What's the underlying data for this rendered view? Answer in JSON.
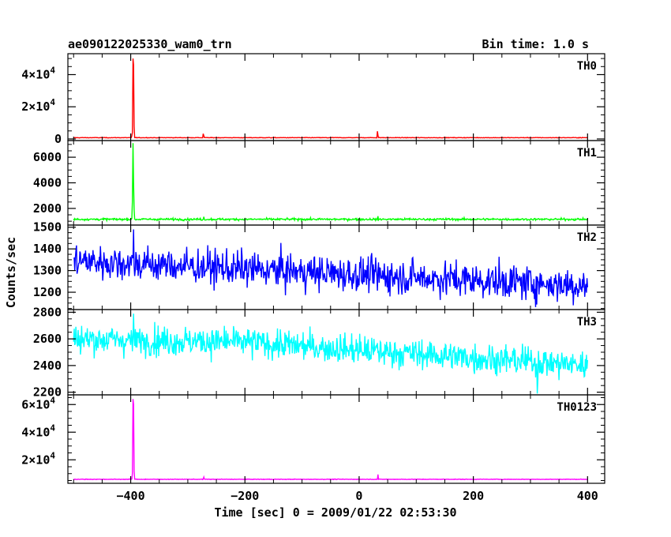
{
  "chart_data": {
    "type": "line",
    "title": "ae090122025330_wam0_trn",
    "subtitle": "Bin time: 1.0 s",
    "xlabel": "Time [sec] 0 = 2009/01/22 02:53:30",
    "ylabel": "Counts/sec",
    "xlim": [
      -510,
      430
    ],
    "x_ticks": [
      -400,
      -200,
      0,
      200,
      400
    ],
    "x_tick_labels": [
      "−400",
      "−200",
      "0",
      "200",
      "400"
    ],
    "grid": false,
    "panels": [
      {
        "name": "TH0",
        "color": "#ff0000",
        "ylim": [
          -1000,
          53000
        ],
        "ticks": [
          0,
          20000,
          40000
        ],
        "tick_labels": [
          {
            "base": "0",
            "exp": ""
          },
          {
            "base": "2×10",
            "exp": "4"
          },
          {
            "base": "4×10",
            "exp": "4"
          }
        ],
        "baseline": 800,
        "noise": 80,
        "spikes": [
          {
            "t": -398,
            "value": 2000
          },
          {
            "t": -397,
            "value": 4000
          },
          {
            "t": -396,
            "value": 50000
          },
          {
            "t": -395,
            "value": 46000
          },
          {
            "t": -394,
            "value": 8000
          },
          {
            "t": -273,
            "value": 3200
          },
          {
            "t": -272,
            "value": 2000
          },
          {
            "t": 32,
            "value": 4800
          },
          {
            "t": 33,
            "value": 2400
          }
        ]
      },
      {
        "name": "TH1",
        "color": "#00ff00",
        "ylim": [
          700,
          7300
        ],
        "ticks": [
          2000,
          4000,
          6000
        ],
        "tick_labels": [
          {
            "base": "2000",
            "exp": ""
          },
          {
            "base": "4000",
            "exp": ""
          },
          {
            "base": "6000",
            "exp": ""
          }
        ],
        "baseline": 1150,
        "noise": 40,
        "spikes": [
          {
            "t": -397,
            "value": 2500
          },
          {
            "t": -396,
            "value": 7100
          },
          {
            "t": -395,
            "value": 4000
          },
          {
            "t": -394,
            "value": 1900
          },
          {
            "t": -272,
            "value": 1350
          },
          {
            "t": 33,
            "value": 1400
          }
        ]
      },
      {
        "name": "TH2",
        "color": "#0000ff",
        "ylim": [
          1120,
          1510
        ],
        "ticks": [
          1200,
          1300,
          1400,
          1500
        ],
        "tick_labels": [
          {
            "base": "1200",
            "exp": ""
          },
          {
            "base": "1300",
            "exp": ""
          },
          {
            "base": "1400",
            "exp": ""
          },
          {
            "base": "1500",
            "exp": ""
          }
        ],
        "trend": [
          {
            "t": -500,
            "value": 1345
          },
          {
            "t": 400,
            "value": 1230
          }
        ],
        "noise": 40,
        "spikes": [
          {
            "t": -395,
            "value": 1490
          }
        ]
      },
      {
        "name": "TH3",
        "color": "#00ffff",
        "ylim": [
          2180,
          2820
        ],
        "ticks": [
          2200,
          2400,
          2600,
          2800
        ],
        "tick_labels": [
          {
            "base": "2200",
            "exp": ""
          },
          {
            "base": "2400",
            "exp": ""
          },
          {
            "base": "2600",
            "exp": ""
          },
          {
            "base": "2800",
            "exp": ""
          }
        ],
        "trend": [
          {
            "t": -500,
            "value": 2600
          },
          {
            "t": -200,
            "value": 2575
          },
          {
            "t": 400,
            "value": 2400
          }
        ],
        "noise": 55,
        "spikes": [
          {
            "t": -395,
            "value": 2790
          },
          {
            "t": 312,
            "value": 2190
          }
        ]
      },
      {
        "name": "TH0123",
        "color": "#ff00ff",
        "ylim": [
          3000,
          67000
        ],
        "ticks": [
          20000,
          40000,
          60000
        ],
        "tick_labels": [
          {
            "base": "2×10",
            "exp": "4"
          },
          {
            "base": "4×10",
            "exp": "4"
          },
          {
            "base": "6×10",
            "exp": "4"
          }
        ],
        "baseline": 5900,
        "noise": 100,
        "spikes": [
          {
            "t": -397,
            "value": 10000
          },
          {
            "t": -396,
            "value": 64000
          },
          {
            "t": -395,
            "value": 60000
          },
          {
            "t": -394,
            "value": 12000
          },
          {
            "t": -272,
            "value": 7500
          },
          {
            "t": 33,
            "value": 9400
          }
        ]
      }
    ]
  }
}
